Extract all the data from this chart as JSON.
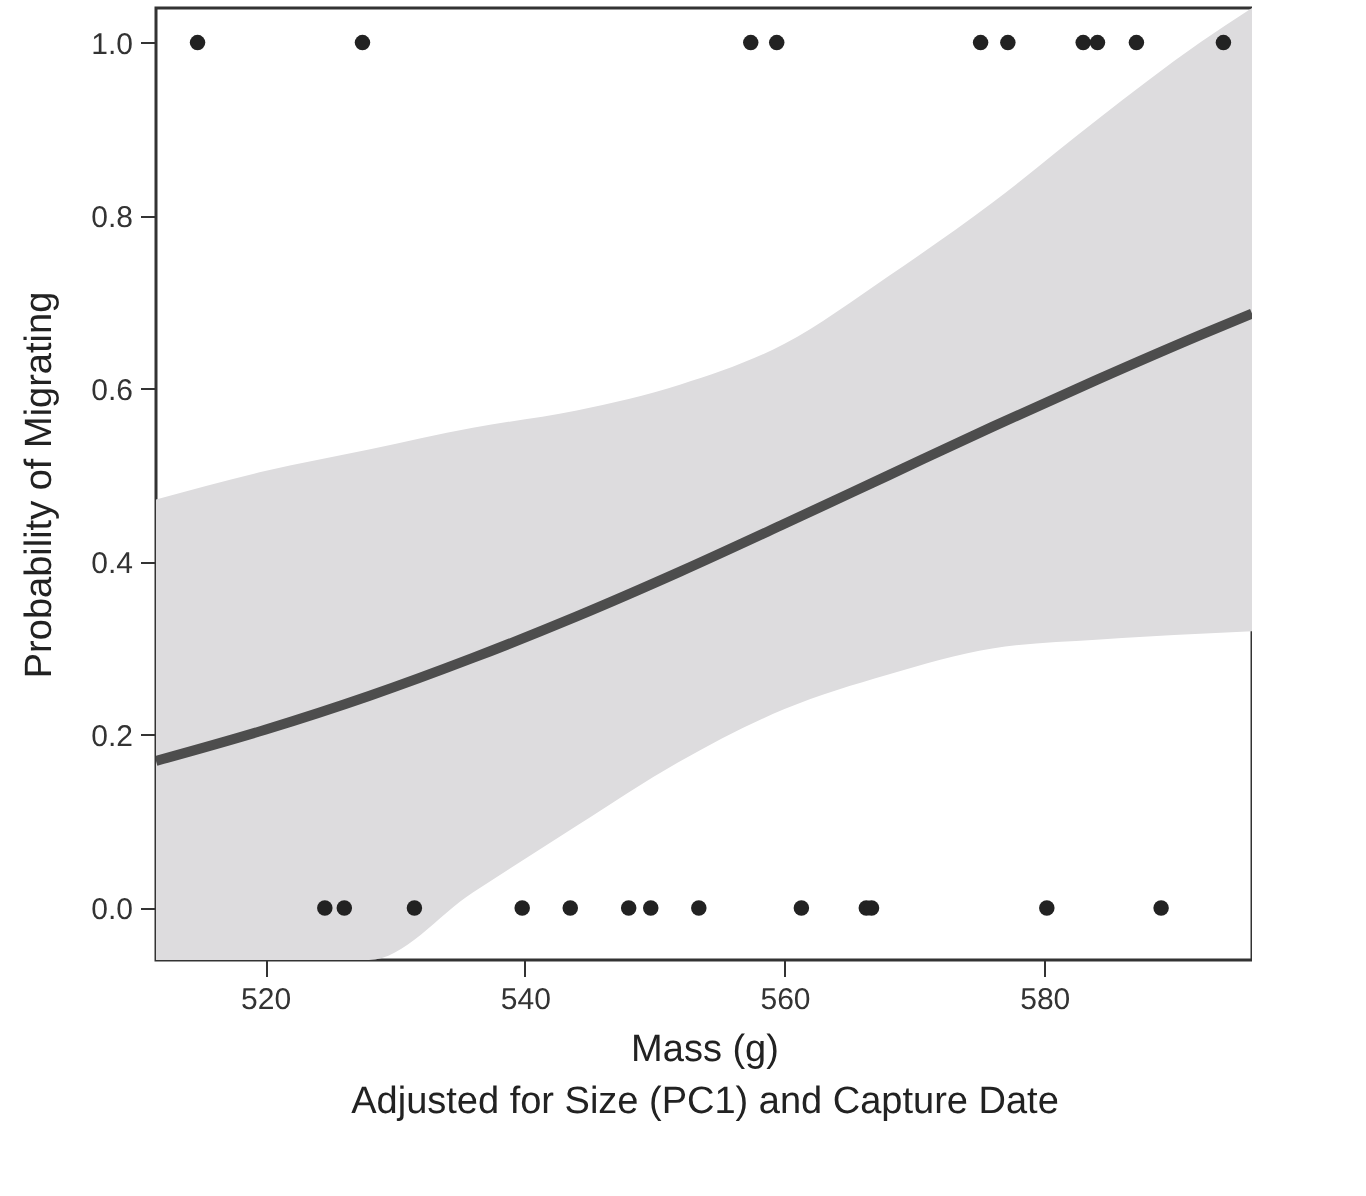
{
  "chart_data": {
    "type": "scatter",
    "xlabel": "Mass (g)\nAdjusted for Size (PC1) and Capture Date",
    "ylabel": "Probability of Migrating",
    "xlim": [
      511.6,
      596
    ],
    "xticks": [
      520,
      540,
      560,
      580
    ],
    "ylim": [
      -0.06,
      1.04
    ],
    "yticks": [
      {
        "value": 0,
        "label": "0.0"
      },
      {
        "value": 0.2,
        "label": "0.2"
      },
      {
        "value": 0.4,
        "label": "0.4"
      },
      {
        "value": 0.6,
        "label": "0.6"
      },
      {
        "value": 0.8,
        "label": "0.8"
      },
      {
        "value": 1,
        "label": "1.0"
      }
    ],
    "grid": false,
    "series": [
      {
        "type": "line",
        "marker": "none",
        "color": "#4d4d4d",
        "x": [
          511.6,
          520,
          528,
          536,
          544,
          552,
          560,
          568,
          576,
          584,
          592,
          596
        ],
        "values": [
          0.17,
          0.206,
          0.245,
          0.289,
          0.337,
          0.389,
          0.444,
          0.5,
          0.556,
          0.61,
          0.662,
          0.687
        ],
        "lower": [
          -0.06,
          -0.06,
          -0.06,
          0.018,
          0.095,
          0.17,
          0.23,
          0.27,
          0.3,
          0.31,
          0.317,
          0.32
        ],
        "upper": [
          0.472,
          0.505,
          0.53,
          0.555,
          0.575,
          0.605,
          0.652,
          0.73,
          0.815,
          0.91,
          1.0,
          1.04
        ]
      },
      {
        "marker": "circle",
        "color": "#222222",
        "x": [
          524.6,
          526.1,
          531.5,
          539.8,
          543.5,
          548.0,
          549.7,
          553.4,
          561.3,
          566.3,
          566.7,
          580.2,
          589.0,
          514.8,
          527.5,
          557.4,
          559.4,
          575.1,
          577.2,
          583.0,
          584.1,
          587.1,
          593.8
        ],
        "values": [
          0,
          0,
          0,
          0,
          0,
          0,
          0,
          0,
          0,
          0,
          0,
          0,
          0,
          1,
          1,
          1,
          1,
          1,
          1,
          1,
          1,
          1,
          1
        ]
      }
    ]
  }
}
